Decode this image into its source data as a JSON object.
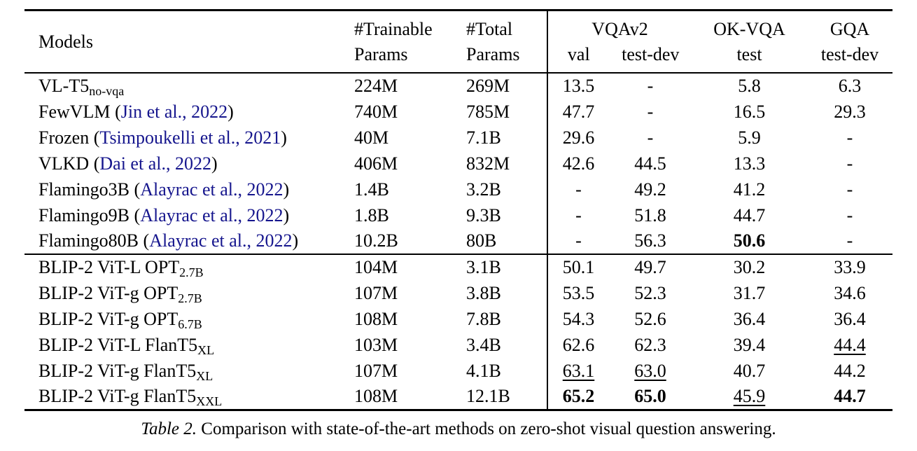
{
  "colors": {
    "citation": "#15158d",
    "text": "#000000",
    "rule": "#000000"
  },
  "table": {
    "header": {
      "models": "Models",
      "trainable_line1": "#Trainable",
      "trainable_line2": "Params",
      "total_line1": "#Total",
      "total_line2": "Params",
      "vqav2": "VQAv2",
      "vqav2_val": "val",
      "vqav2_testdev": "test-dev",
      "okvqa": "OK-VQA",
      "okvqa_test": "test",
      "gqa": "GQA",
      "gqa_testdev": "test-dev"
    },
    "sections": [
      {
        "rows": [
          {
            "name": "VL-T5",
            "sub": "no-vqa",
            "cite": null,
            "cells": [
              {
                "t": "224M"
              },
              {
                "t": "269M"
              },
              {
                "t": "13.5"
              },
              {
                "t": "-"
              },
              {
                "t": "5.8"
              },
              {
                "t": "6.3"
              }
            ]
          },
          {
            "name": "FewVLM",
            "sub": null,
            "cite": "Jin et al., 2022",
            "cells": [
              {
                "t": "740M"
              },
              {
                "t": "785M"
              },
              {
                "t": "47.7"
              },
              {
                "t": "-"
              },
              {
                "t": "16.5"
              },
              {
                "t": "29.3"
              }
            ]
          },
          {
            "name": "Frozen",
            "sub": null,
            "cite": "Tsimpoukelli et al., 2021",
            "cells": [
              {
                "t": "40M"
              },
              {
                "t": "7.1B"
              },
              {
                "t": "29.6"
              },
              {
                "t": "-"
              },
              {
                "t": "5.9"
              },
              {
                "t": "-"
              }
            ]
          },
          {
            "name": "VLKD",
            "sub": null,
            "cite": "Dai et al., 2022",
            "cells": [
              {
                "t": "406M"
              },
              {
                "t": "832M"
              },
              {
                "t": "42.6"
              },
              {
                "t": "44.5"
              },
              {
                "t": "13.3"
              },
              {
                "t": "-"
              }
            ]
          },
          {
            "name": "Flamingo3B",
            "sub": null,
            "cite": "Alayrac et al., 2022",
            "cells": [
              {
                "t": "1.4B"
              },
              {
                "t": "3.2B"
              },
              {
                "t": "-"
              },
              {
                "t": "49.2"
              },
              {
                "t": "41.2"
              },
              {
                "t": "-"
              }
            ]
          },
          {
            "name": "Flamingo9B",
            "sub": null,
            "cite": "Alayrac et al., 2022",
            "cells": [
              {
                "t": "1.8B"
              },
              {
                "t": "9.3B"
              },
              {
                "t": "-"
              },
              {
                "t": "51.8"
              },
              {
                "t": "44.7"
              },
              {
                "t": "-"
              }
            ]
          },
          {
            "name": "Flamingo80B",
            "sub": null,
            "cite": "Alayrac et al., 2022",
            "cells": [
              {
                "t": "10.2B"
              },
              {
                "t": "80B"
              },
              {
                "t": "-"
              },
              {
                "t": "56.3"
              },
              {
                "t": "50.6",
                "b": true
              },
              {
                "t": "-"
              }
            ]
          }
        ]
      },
      {
        "rows": [
          {
            "name": "BLIP-2 ViT-L OPT",
            "sub": "2.7B",
            "cite": null,
            "cells": [
              {
                "t": "104M"
              },
              {
                "t": "3.1B"
              },
              {
                "t": "50.1"
              },
              {
                "t": "49.7"
              },
              {
                "t": "30.2"
              },
              {
                "t": "33.9"
              }
            ]
          },
          {
            "name": "BLIP-2 ViT-g OPT",
            "sub": "2.7B",
            "cite": null,
            "cells": [
              {
                "t": "107M"
              },
              {
                "t": "3.8B"
              },
              {
                "t": "53.5"
              },
              {
                "t": "52.3"
              },
              {
                "t": "31.7"
              },
              {
                "t": "34.6"
              }
            ]
          },
          {
            "name": "BLIP-2 ViT-g OPT",
            "sub": "6.7B",
            "cite": null,
            "cells": [
              {
                "t": "108M"
              },
              {
                "t": "7.8B"
              },
              {
                "t": "54.3"
              },
              {
                "t": "52.6"
              },
              {
                "t": "36.4"
              },
              {
                "t": "36.4"
              }
            ]
          },
          {
            "name": "BLIP-2 ViT-L FlanT5",
            "sub": "XL",
            "cite": null,
            "cells": [
              {
                "t": "103M"
              },
              {
                "t": "3.4B"
              },
              {
                "t": "62.6"
              },
              {
                "t": "62.3"
              },
              {
                "t": "39.4"
              },
              {
                "t": "44.4",
                "u": true
              }
            ]
          },
          {
            "name": "BLIP-2 ViT-g FlanT5",
            "sub": "XL",
            "cite": null,
            "cells": [
              {
                "t": "107M"
              },
              {
                "t": "4.1B"
              },
              {
                "t": "63.1",
                "u": true
              },
              {
                "t": "63.0",
                "u": true
              },
              {
                "t": "40.7"
              },
              {
                "t": "44.2"
              }
            ]
          },
          {
            "name": "BLIP-2 ViT-g FlanT5",
            "sub": "XXL",
            "cite": null,
            "cells": [
              {
                "t": "108M"
              },
              {
                "t": "12.1B"
              },
              {
                "t": "65.2",
                "b": true
              },
              {
                "t": "65.0",
                "b": true
              },
              {
                "t": "45.9",
                "u": true
              },
              {
                "t": "44.7",
                "b": true
              }
            ]
          }
        ]
      }
    ]
  },
  "caption": {
    "label": "Table 2.",
    "text": "Comparison with state-of-the-art methods on zero-shot visual question answering."
  }
}
